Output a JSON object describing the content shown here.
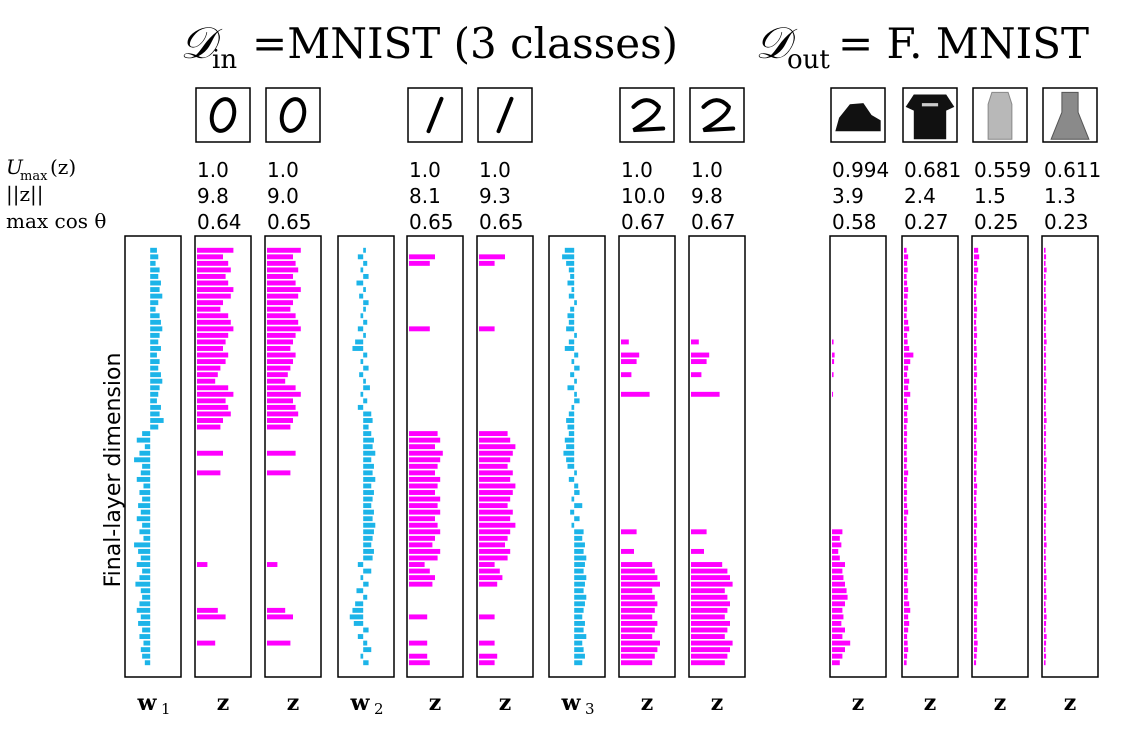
{
  "title": {
    "din": "𝒟",
    "din_sub": "in",
    "din_text": "=MNIST (3 classes)",
    "dout": "𝒟",
    "dout_sub": "out",
    "dout_text": "= F. MNIST"
  },
  "row_labels": {
    "umax": "U",
    "umax_sub": "max",
    "umax_arg": "(z)",
    "znorm": "||z||",
    "maxcos": "max cos θ"
  },
  "ylabel": "Final-layer dimension",
  "colors": {
    "w": "#1cb4e8",
    "z": "#ff00ff",
    "frame": "#000000"
  },
  "chart_data": {
    "type": "bar",
    "orientation": "horizontal",
    "ylabel": "Final-layer dimension",
    "n_dims": 64,
    "columns": [
      {
        "id": "w1",
        "kind": "w",
        "label": "w",
        "sub": "1",
        "icon": null,
        "values": [
          0.25,
          0.3,
          0.2,
          0.35,
          0.3,
          0.4,
          0.35,
          0.45,
          0.3,
          0.2,
          0.35,
          0.4,
          0.45,
          0.35,
          0.3,
          0.4,
          0.25,
          0.35,
          0.3,
          0.4,
          0.45,
          0.35,
          0.3,
          0.25,
          0.4,
          0.35,
          0.5,
          0.3,
          -0.3,
          -0.5,
          -0.2,
          -0.4,
          -0.6,
          -0.3,
          -0.35,
          -0.5,
          -0.25,
          -0.4,
          -0.3,
          -0.45,
          -0.35,
          -0.5,
          -0.3,
          -0.4,
          -0.25,
          -0.6,
          -0.45,
          -0.35,
          -0.5,
          -0.3,
          -0.4,
          -0.55,
          -0.35,
          -0.3,
          -0.4,
          -0.5,
          -0.35,
          -0.45,
          -0.3,
          -0.4,
          -0.25,
          -0.35,
          -0.3,
          -0.2
        ]
      },
      {
        "id": "z0a",
        "kind": "z",
        "label": "z",
        "sub": "",
        "icon": "digit-0",
        "umax": "1.0",
        "znorm": "9.8",
        "maxcos": "0.64",
        "values": [
          0.7,
          0.5,
          0.6,
          0.65,
          0.55,
          0.6,
          0.7,
          0.65,
          0.5,
          0.45,
          0.6,
          0.65,
          0.7,
          0.6,
          0.55,
          0.5,
          0.6,
          0.55,
          0.45,
          0.4,
          0.35,
          0.6,
          0.7,
          0.55,
          0.6,
          0.65,
          0.5,
          0.45,
          0,
          0,
          0,
          0.5,
          0,
          0,
          0.45,
          0,
          0,
          0,
          0,
          0,
          0,
          0,
          0,
          0,
          0,
          0,
          0,
          0,
          0.2,
          0,
          0,
          0,
          0,
          0,
          0,
          0.4,
          0.55,
          0,
          0,
          0,
          0.35,
          0,
          0,
          0
        ]
      },
      {
        "id": "z0b",
        "kind": "z",
        "label": "z",
        "sub": "",
        "icon": "digit-0",
        "umax": "1.0",
        "znorm": "9.0",
        "maxcos": "0.65",
        "values": [
          0.65,
          0.5,
          0.55,
          0.6,
          0.5,
          0.55,
          0.65,
          0.6,
          0.5,
          0.45,
          0.55,
          0.6,
          0.65,
          0.55,
          0.5,
          0.45,
          0.55,
          0.5,
          0.45,
          0.4,
          0.35,
          0.55,
          0.65,
          0.5,
          0.55,
          0.6,
          0.5,
          0.45,
          0,
          0,
          0,
          0.55,
          0,
          0,
          0.45,
          0,
          0,
          0,
          0,
          0,
          0,
          0,
          0,
          0,
          0,
          0,
          0,
          0,
          0.2,
          0,
          0,
          0,
          0,
          0,
          0,
          0.35,
          0.5,
          0,
          0,
          0,
          0.45,
          0,
          0,
          0
        ]
      },
      {
        "id": "w2",
        "kind": "w",
        "label": "w",
        "sub": "2",
        "icon": null,
        "values": [
          0.1,
          -0.2,
          0.15,
          -0.1,
          0.2,
          -0.25,
          0.1,
          -0.15,
          0.2,
          0.1,
          -0.1,
          0.15,
          -0.2,
          0.1,
          -0.3,
          -0.4,
          0.15,
          -0.1,
          0.2,
          -0.15,
          0.1,
          0.25,
          -0.1,
          0.15,
          -0.2,
          0.3,
          0.35,
          0.2,
          0.3,
          0.4,
          0.35,
          0.45,
          0.3,
          0.4,
          0.35,
          0.45,
          0.3,
          0.4,
          0.35,
          0.3,
          0.4,
          0.35,
          0.45,
          0.4,
          0.35,
          0.3,
          0.4,
          0.35,
          -0.2,
          0.3,
          -0.1,
          0.2,
          -0.25,
          0.15,
          -0.3,
          -0.4,
          -0.5,
          -0.35,
          0.2,
          -0.2,
          0.15,
          0.3,
          -0.1,
          0.2
        ]
      },
      {
        "id": "z1a",
        "kind": "z",
        "label": "z",
        "sub": "",
        "icon": "digit-1",
        "umax": "1.0",
        "znorm": "8.1",
        "maxcos": "0.65",
        "values": [
          0,
          0.5,
          0.4,
          0,
          0,
          0,
          0,
          0,
          0,
          0,
          0,
          0,
          0.4,
          0,
          0,
          0,
          0,
          0,
          0,
          0,
          0,
          0,
          0,
          0,
          0,
          0,
          0,
          0,
          0.55,
          0.6,
          0.5,
          0.65,
          0.6,
          0.55,
          0.5,
          0.6,
          0.55,
          0.5,
          0.6,
          0.55,
          0.6,
          0.5,
          0.55,
          0.6,
          0.5,
          0.45,
          0.6,
          0.55,
          0.3,
          0.4,
          0.5,
          0.45,
          0,
          0,
          0,
          0,
          0.35,
          0,
          0,
          0,
          0.35,
          0,
          0.35,
          0.4
        ]
      },
      {
        "id": "z1b",
        "kind": "z",
        "label": "z",
        "sub": "",
        "icon": "digit-1",
        "umax": "1.0",
        "znorm": "9.3",
        "maxcos": "0.65",
        "values": [
          0,
          0.5,
          0.3,
          0,
          0,
          0,
          0,
          0,
          0,
          0,
          0,
          0,
          0.3,
          0,
          0,
          0,
          0,
          0,
          0,
          0,
          0,
          0,
          0,
          0,
          0,
          0,
          0,
          0,
          0.55,
          0.6,
          0.7,
          0.65,
          0.6,
          0.55,
          0.65,
          0.6,
          0.7,
          0.65,
          0.6,
          0.55,
          0.65,
          0.6,
          0.7,
          0.6,
          0.55,
          0.5,
          0.6,
          0.55,
          0.3,
          0.4,
          0.45,
          0.35,
          0,
          0,
          0,
          0,
          0.3,
          0,
          0,
          0,
          0.3,
          0,
          0.35,
          0.3
        ]
      },
      {
        "id": "w3",
        "kind": "w",
        "label": "w",
        "sub": "3",
        "icon": null,
        "values": [
          -0.35,
          -0.45,
          -0.3,
          -0.2,
          -0.15,
          -0.25,
          -0.1,
          -0.2,
          0.1,
          -0.15,
          -0.25,
          -0.2,
          -0.3,
          0.1,
          -0.2,
          -0.35,
          0.15,
          -0.1,
          0.2,
          -0.15,
          0.1,
          -0.25,
          0.1,
          0.2,
          -0.1,
          -0.2,
          -0.3,
          -0.25,
          -0.2,
          -0.35,
          -0.3,
          -0.4,
          -0.3,
          -0.25,
          0.1,
          -0.2,
          0.15,
          0.2,
          -0.1,
          0.3,
          -0.15,
          0.2,
          -0.1,
          0.35,
          0.3,
          0.4,
          0.35,
          0.45,
          0.4,
          0.35,
          0.45,
          0.4,
          0.35,
          0.45,
          0.4,
          0.35,
          0.3,
          0.4,
          0.35,
          0.45,
          0.3,
          0.35,
          0.4,
          0.3
        ]
      },
      {
        "id": "z2a",
        "kind": "z",
        "label": "z",
        "sub": "",
        "icon": "digit-2",
        "umax": "1.0",
        "znorm": "10.0",
        "maxcos": "0.67",
        "values": [
          0,
          0,
          0,
          0,
          0,
          0,
          0,
          0,
          0,
          0,
          0,
          0,
          0,
          0,
          0.15,
          0,
          0.35,
          0.3,
          0,
          0.2,
          0,
          0,
          0.55,
          0,
          0,
          0,
          0,
          0,
          0,
          0,
          0,
          0,
          0,
          0,
          0,
          0,
          0,
          0,
          0,
          0,
          0,
          0,
          0,
          0.3,
          0,
          0,
          0.25,
          0,
          0.6,
          0.65,
          0.7,
          0.75,
          0.6,
          0.65,
          0.7,
          0.65,
          0.6,
          0.7,
          0.65,
          0.6,
          0.75,
          0.7,
          0.65,
          0.6
        ]
      },
      {
        "id": "z2b",
        "kind": "z",
        "label": "z",
        "sub": "",
        "icon": "digit-2",
        "umax": "1.0",
        "znorm": "9.8",
        "maxcos": "0.67",
        "values": [
          0,
          0,
          0,
          0,
          0,
          0,
          0,
          0,
          0,
          0,
          0,
          0,
          0,
          0,
          0.15,
          0,
          0.35,
          0.3,
          0,
          0.2,
          0,
          0,
          0.55,
          0,
          0,
          0,
          0,
          0,
          0,
          0,
          0,
          0,
          0,
          0,
          0,
          0,
          0,
          0,
          0,
          0,
          0,
          0,
          0,
          0.3,
          0,
          0,
          0.25,
          0,
          0.6,
          0.7,
          0.75,
          0.8,
          0.65,
          0.7,
          0.75,
          0.7,
          0.65,
          0.75,
          0.7,
          0.65,
          0.8,
          0.75,
          0.7,
          0.65
        ]
      },
      {
        "id": "zo1",
        "kind": "z",
        "label": "z",
        "sub": "",
        "icon": "fashion-boot",
        "umax": "0.994",
        "znorm": "3.9",
        "maxcos": "0.58",
        "values": [
          0,
          0,
          0,
          0,
          0,
          0,
          0,
          0,
          0,
          0,
          0,
          0,
          0,
          0,
          0.03,
          0,
          0.05,
          0.04,
          0,
          0.03,
          0,
          0,
          0.02,
          0,
          0,
          0,
          0,
          0,
          0,
          0,
          0,
          0,
          0,
          0,
          0,
          0,
          0,
          0,
          0,
          0,
          0,
          0,
          0,
          0.2,
          0.15,
          0.18,
          0.12,
          0.15,
          0.25,
          0.2,
          0.22,
          0.25,
          0.28,
          0.3,
          0.25,
          0.2,
          0.22,
          0.18,
          0.25,
          0.2,
          0.35,
          0.25,
          0.2,
          0.15
        ]
      },
      {
        "id": "zo2",
        "kind": "z",
        "label": "z",
        "sub": "",
        "icon": "fashion-tshirt",
        "umax": "0.681",
        "znorm": "2.4",
        "maxcos": "0.27",
        "values": [
          0.05,
          0.08,
          0.06,
          0.07,
          0.05,
          0.06,
          0.08,
          0.07,
          0.05,
          0.06,
          0.05,
          0.08,
          0.1,
          0.06,
          0.07,
          0.1,
          0.18,
          0.12,
          0.08,
          0.06,
          0.1,
          0.08,
          0.12,
          0.06,
          0.08,
          0.06,
          0.07,
          0.05,
          0.06,
          0.05,
          0.06,
          0.05,
          0.06,
          0.05,
          0.08,
          0.06,
          0.05,
          0.06,
          0.05,
          0.06,
          0.08,
          0.05,
          0.06,
          0.05,
          0.06,
          0.05,
          0.06,
          0.05,
          0.06,
          0.08,
          0.07,
          0.06,
          0.08,
          0.07,
          0.1,
          0.12,
          0.08,
          0.1,
          0.08,
          0.06,
          0.07,
          0.08,
          0.06,
          0.05
        ]
      },
      {
        "id": "zo3",
        "kind": "z",
        "label": "z",
        "sub": "",
        "icon": "fashion-top",
        "umax": "0.559",
        "znorm": "1.5",
        "maxcos": "0.25",
        "values": [
          0.08,
          0.1,
          0.06,
          0.08,
          0.05,
          0.06,
          0.04,
          0.05,
          0.04,
          0.06,
          0.05,
          0.04,
          0.05,
          0.06,
          0.04,
          0.05,
          0.06,
          0.04,
          0.05,
          0.06,
          0.04,
          0.05,
          0.04,
          0.06,
          0.05,
          0.04,
          0.05,
          0.06,
          0.04,
          0.05,
          0.04,
          0.06,
          0.05,
          0.04,
          0.05,
          0.04,
          0.06,
          0.05,
          0.04,
          0.05,
          0.04,
          0.05,
          0.06,
          0.04,
          0.05,
          0.06,
          0.04,
          0.05,
          0.06,
          0.07,
          0.05,
          0.06,
          0.05,
          0.06,
          0.07,
          0.05,
          0.06,
          0.05,
          0.06,
          0.05,
          0.07,
          0.06,
          0.05,
          0.04
        ]
      },
      {
        "id": "zo4",
        "kind": "z",
        "label": "z",
        "sub": "",
        "icon": "fashion-dress",
        "umax": "0.611",
        "znorm": "1.3",
        "maxcos": "0.23",
        "values": [
          0.03,
          0.04,
          0.03,
          0.05,
          0.03,
          0.04,
          0.03,
          0.04,
          0.03,
          0.05,
          0.03,
          0.04,
          0.03,
          0.04,
          0.05,
          0.03,
          0.04,
          0.03,
          0.04,
          0.03,
          0.05,
          0.04,
          0.03,
          0.04,
          0.03,
          0.04,
          0.05,
          0.03,
          0.04,
          0.03,
          0.04,
          0.03,
          0.05,
          0.04,
          0.03,
          0.04,
          0.03,
          0.04,
          0.03,
          0.05,
          0.04,
          0.03,
          0.04,
          0.03,
          0.04,
          0.05,
          0.03,
          0.04,
          0.03,
          0.04,
          0.05,
          0.03,
          0.04,
          0.05,
          0.03,
          0.04,
          0.05,
          0.04,
          0.03,
          0.05,
          0.04,
          0.03,
          0.04,
          0.03
        ]
      }
    ]
  }
}
